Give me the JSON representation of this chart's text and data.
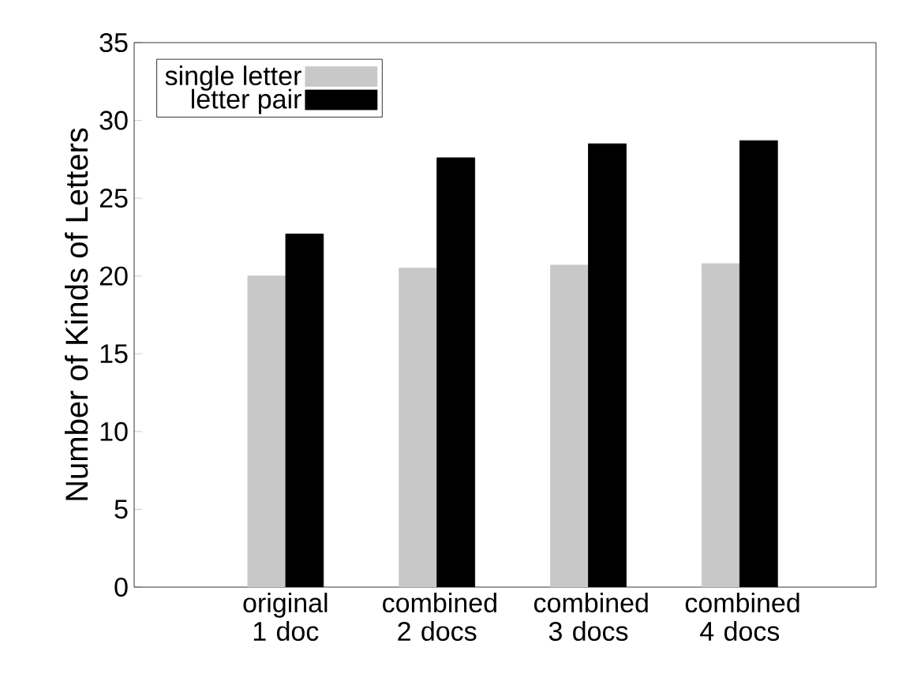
{
  "chart_data": {
    "type": "bar",
    "ylabel": "Number of Kinds of Letters",
    "categories": [
      "original 1 doc",
      "combined 2 docs",
      "combined 3 docs",
      "combined 4 docs"
    ],
    "series": [
      {
        "name": "single letter",
        "color": "#c8c8c8",
        "values": [
          20.0,
          20.5,
          20.7,
          20.8
        ]
      },
      {
        "name": "letter pair",
        "color": "#000000",
        "values": [
          22.7,
          27.6,
          28.5,
          28.7
        ]
      }
    ],
    "ylim": [
      0,
      35
    ],
    "yticks": [
      0,
      5,
      10,
      15,
      20,
      25,
      30,
      35
    ],
    "legend": "top left",
    "grid": false
  }
}
